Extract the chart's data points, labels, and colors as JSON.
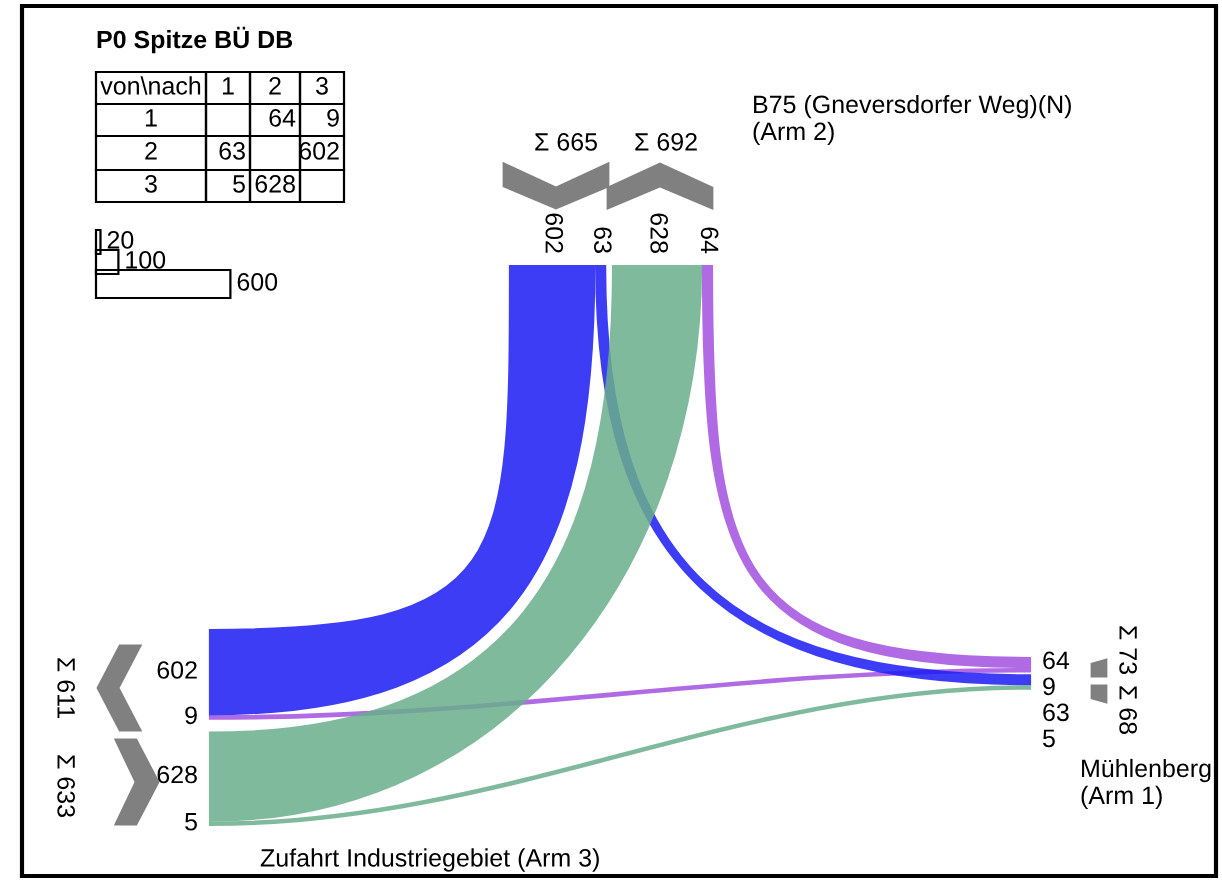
{
  "chart_data": {
    "type": "other",
    "title": "P0 Spitze BÜ DB",
    "categories": [
      "1",
      "2",
      "3"
    ],
    "y_categories": [
      "1",
      "2",
      "3"
    ],
    "series": [
      {
        "color": "#a352e0",
        "values": [
          null,
          64,
          9
        ]
      },
      {
        "color": "#1c1cf5",
        "values": [
          63,
          null,
          602
        ]
      },
      {
        "color": "#6aae8c",
        "values": [
          5,
          628,
          null
        ]
      }
    ],
    "data_labels": true,
    "annotations": [
      "20",
      "100",
      "600",
      "64",
      "9",
      "63",
      "5",
      "602",
      "63",
      "628",
      "64",
      "602",
      "9",
      "628",
      "5",
      "von\\nach",
      "Mühlenberg\n(Arm 1)",
      "B75 (Gneversdorfer Weg)(N)\n(Arm 2)",
      "Zufahrt Industriegebiet (Arm 3)",
      "Σ 73",
      "Σ 68",
      "Σ 665",
      "Σ 692",
      "Σ 611",
      "Σ 633"
    ]
  }
}
